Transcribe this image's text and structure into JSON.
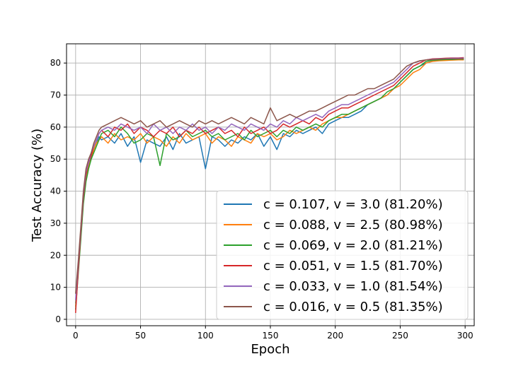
{
  "chart_data": {
    "type": "line",
    "title": "",
    "xlabel": "Epoch",
    "ylabel": "Test Accuracy (%)",
    "xlim": [
      -7,
      307
    ],
    "ylim": [
      -2,
      86
    ],
    "xticks": [
      0,
      50,
      100,
      150,
      200,
      250,
      300
    ],
    "yticks": [
      0,
      10,
      20,
      30,
      40,
      50,
      60,
      70,
      80
    ],
    "grid": true,
    "legend_position": "lower-right",
    "x": [
      0,
      2,
      4,
      6,
      8,
      10,
      12,
      14,
      16,
      18,
      20,
      25,
      30,
      35,
      40,
      45,
      50,
      55,
      60,
      65,
      70,
      75,
      80,
      85,
      90,
      95,
      100,
      105,
      110,
      115,
      120,
      125,
      130,
      135,
      140,
      145,
      150,
      155,
      160,
      165,
      170,
      175,
      180,
      185,
      190,
      195,
      200,
      205,
      210,
      215,
      220,
      225,
      230,
      235,
      240,
      245,
      250,
      255,
      260,
      265,
      270,
      275,
      280,
      285,
      290,
      295,
      299
    ],
    "series": [
      {
        "name": "c = 0.107, v = 3.0 (81.20%)",
        "color": "#1f77b4",
        "values": [
          5,
          16,
          27,
          38,
          45,
          48,
          51,
          53,
          55,
          57,
          56,
          57,
          55,
          58,
          54,
          57,
          49,
          56,
          55,
          54,
          57,
          53,
          58,
          55,
          56,
          57,
          47,
          57,
          56,
          54,
          56,
          55,
          57,
          56,
          58,
          54,
          57,
          53,
          58,
          57,
          59,
          58,
          59,
          60,
          58,
          61,
          62,
          63,
          63,
          64,
          65,
          67,
          68,
          69,
          70,
          72,
          74,
          76,
          78,
          79,
          80,
          80.6,
          80.9,
          81,
          81,
          81.1,
          81.2
        ]
      },
      {
        "name": "c = 0.088, v = 2.5 (80.98%)",
        "color": "#ff7f0e",
        "values": [
          4,
          15,
          26,
          37,
          44,
          48,
          50,
          53,
          55,
          56,
          57,
          55,
          58,
          56,
          57,
          56,
          58,
          55,
          57,
          56,
          54,
          57,
          55,
          58,
          56,
          57,
          58,
          55,
          57,
          56,
          54,
          57,
          56,
          55,
          58,
          57,
          58,
          56,
          57,
          59,
          58,
          59,
          60,
          59,
          61,
          62,
          63,
          63,
          64,
          65,
          66,
          67,
          68,
          69,
          70,
          72,
          73,
          75,
          77,
          78,
          80,
          80.5,
          80.7,
          80.8,
          80.9,
          81,
          80.98
        ]
      },
      {
        "name": "c = 0.069, v = 2.0 (81.21%)",
        "color": "#2ca02c",
        "values": [
          3,
          14,
          25,
          36,
          43,
          47,
          50,
          52,
          54,
          56,
          58,
          59,
          57,
          60,
          58,
          55,
          56,
          58,
          57,
          48,
          58,
          56,
          57,
          59,
          57,
          58,
          59,
          57,
          58,
          56,
          57,
          58,
          56,
          59,
          57,
          58,
          59,
          57,
          59,
          58,
          60,
          59,
          60,
          61,
          60,
          62,
          63,
          64,
          64,
          65,
          66,
          67,
          68,
          69,
          71,
          72,
          74,
          76,
          78,
          79,
          80.5,
          80.9,
          81,
          81.1,
          81.1,
          81.2,
          81.21
        ]
      },
      {
        "name": "c = 0.051, v = 1.5 (81.70%)",
        "color": "#d62728",
        "values": [
          2,
          15,
          27,
          38,
          45,
          49,
          51,
          54,
          56,
          58,
          59,
          57,
          60,
          59,
          61,
          58,
          60,
          59,
          57,
          59,
          58,
          60,
          57,
          59,
          58,
          60,
          58,
          59,
          60,
          58,
          59,
          57,
          60,
          58,
          59,
          60,
          58,
          59,
          61,
          60,
          61,
          62,
          61,
          63,
          62,
          64,
          65,
          66,
          66,
          67,
          68,
          69,
          70,
          71,
          72,
          73,
          75,
          77,
          79,
          80,
          81,
          81.3,
          81.4,
          81.5,
          81.6,
          81.6,
          81.7
        ]
      },
      {
        "name": "c = 0.033, v = 1.0 (81.54%)",
        "color": "#9467bd",
        "values": [
          6,
          17,
          28,
          39,
          46,
          49,
          52,
          54,
          56,
          58,
          59,
          60,
          59,
          61,
          60,
          59,
          60,
          58,
          61,
          59,
          60,
          58,
          60,
          59,
          61,
          59,
          60,
          58,
          60,
          59,
          61,
          60,
          59,
          61,
          60,
          59,
          61,
          60,
          62,
          61,
          63,
          62,
          63,
          64,
          63,
          65,
          66,
          67,
          67,
          68,
          69,
          70,
          71,
          72,
          73,
          74,
          76,
          78,
          80,
          80.6,
          81,
          81.2,
          81.3,
          81.4,
          81.5,
          81.5,
          81.54
        ]
      },
      {
        "name": "c = 0.016, v = 0.5 (81.35%)",
        "color": "#8c564b",
        "values": [
          8,
          18,
          29,
          40,
          47,
          50,
          52,
          55,
          57,
          59,
          60,
          61,
          62,
          63,
          62,
          61,
          62,
          60,
          61,
          62,
          60,
          61,
          62,
          61,
          60,
          62,
          61,
          62,
          61,
          62,
          63,
          62,
          61,
          63,
          62,
          61,
          66,
          62,
          63,
          64,
          63,
          64,
          65,
          65,
          66,
          67,
          68,
          69,
          70,
          70,
          71,
          72,
          72,
          73,
          74,
          75,
          77,
          79,
          80,
          80.7,
          81,
          81.1,
          81.2,
          81.3,
          81.3,
          81.3,
          81.35
        ]
      }
    ]
  }
}
